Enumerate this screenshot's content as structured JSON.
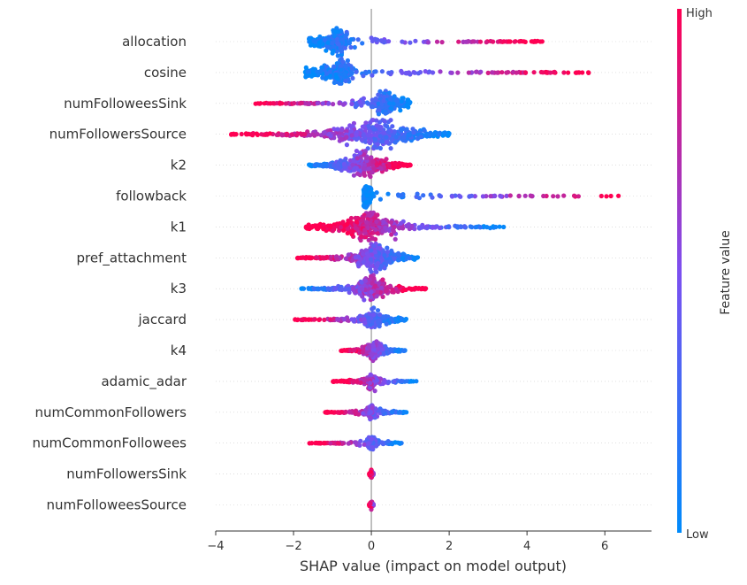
{
  "chart_data": {
    "type": "scatter",
    "subtype": "shap-beeswarm-summary",
    "xlabel": "SHAP value (impact on model output)",
    "xlim": [
      -4,
      7.2
    ],
    "xticks": [
      -4,
      -2,
      0,
      2,
      4,
      6
    ],
    "xtick_labels": [
      "−4",
      "−2",
      "0",
      "2",
      "4",
      "6"
    ],
    "colorbar": {
      "label": "Feature value",
      "high_label": "High",
      "low_label": "Low",
      "low_color": "#008bfb",
      "high_color": "#ff0052"
    },
    "features": [
      {
        "name": "allocation",
        "min": -1.6,
        "max": 4.4,
        "core_min": -0.9,
        "core_max": -0.8,
        "spread": 0.55,
        "low_side": "left",
        "density": 1.0
      },
      {
        "name": "cosine",
        "min": -1.7,
        "max": 5.6,
        "core_min": -0.8,
        "core_max": -0.7,
        "spread": 0.5,
        "low_side": "left",
        "density": 1.0
      },
      {
        "name": "numFolloweesSink",
        "min": -3.1,
        "max": 1.0,
        "core_min": 0.3,
        "core_max": 0.4,
        "spread": 0.5,
        "low_side": "right",
        "density": 0.8
      },
      {
        "name": "numFollowersSource",
        "min": -3.6,
        "max": 2.0,
        "core_min": -0.4,
        "core_max": 0.6,
        "spread": 0.9,
        "low_side": "right",
        "density": 1.0
      },
      {
        "name": "k2",
        "min": -1.6,
        "max": 1.0,
        "core_min": -0.6,
        "core_max": 0.2,
        "spread": 0.9,
        "low_side": "left",
        "density": 0.9
      },
      {
        "name": "followback",
        "min": -0.2,
        "max": 6.6,
        "core_min": -0.1,
        "core_max": -0.1,
        "spread": 0.4,
        "low_side": "left",
        "density": 0.8
      },
      {
        "name": "k1",
        "min": -1.7,
        "max": 3.4,
        "core_min": -0.3,
        "core_max": 0.2,
        "spread": 0.7,
        "low_side": "right",
        "density": 0.95
      },
      {
        "name": "pref_attachment",
        "min": -1.9,
        "max": 1.2,
        "core_min": -0.1,
        "core_max": 0.3,
        "spread": 0.75,
        "low_side": "right",
        "density": 0.95
      },
      {
        "name": "k3",
        "min": -1.8,
        "max": 1.4,
        "core_min": -0.1,
        "core_max": 0.1,
        "spread": 0.6,
        "low_side": "left",
        "density": 0.85
      },
      {
        "name": "jaccard",
        "min": -2.0,
        "max": 0.9,
        "core_min": 0.0,
        "core_max": 0.1,
        "spread": 0.4,
        "low_side": "right",
        "density": 0.7
      },
      {
        "name": "k4",
        "min": -0.8,
        "max": 0.9,
        "core_min": 0.0,
        "core_max": 0.2,
        "spread": 0.5,
        "low_side": "right",
        "density": 0.7
      },
      {
        "name": "adamic_adar",
        "min": -1.0,
        "max": 1.2,
        "core_min": 0.0,
        "core_max": 0.0,
        "spread": 0.3,
        "low_side": "right",
        "density": 0.6
      },
      {
        "name": "numCommonFollowers",
        "min": -1.2,
        "max": 0.9,
        "core_min": 0.0,
        "core_max": 0.0,
        "spread": 0.3,
        "low_side": "right",
        "density": 0.6
      },
      {
        "name": "numCommonFollowees",
        "min": -1.6,
        "max": 0.8,
        "core_min": 0.0,
        "core_max": 0.0,
        "spread": 0.3,
        "low_side": "right",
        "density": 0.6
      },
      {
        "name": "numFollowersSink",
        "min": -0.05,
        "max": 0.05,
        "core_min": 0.0,
        "core_max": 0.0,
        "spread": 0.2,
        "low_side": "right",
        "density": 0.3
      },
      {
        "name": "numFolloweesSource",
        "min": -0.05,
        "max": 0.05,
        "core_min": 0.0,
        "core_max": 0.0,
        "spread": 0.2,
        "low_side": "right",
        "density": 0.3
      }
    ]
  }
}
